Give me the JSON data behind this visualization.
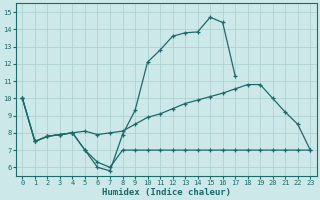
{
  "background_color": "#cce8e8",
  "grid_color": "#aacece",
  "line_color": "#1a6b6b",
  "xlabel": "Humidex (Indice chaleur)",
  "xlim": [
    -0.5,
    23.5
  ],
  "ylim": [
    5.5,
    15.5
  ],
  "yticks": [
    6,
    7,
    8,
    9,
    10,
    11,
    12,
    13,
    14,
    15
  ],
  "xticks": [
    0,
    1,
    2,
    3,
    4,
    5,
    6,
    7,
    8,
    9,
    10,
    11,
    12,
    13,
    14,
    15,
    16,
    17,
    18,
    19,
    20,
    21,
    22,
    23
  ],
  "line1_x": [
    0,
    1,
    2,
    3,
    4,
    5,
    6,
    7,
    8,
    9,
    10,
    11,
    12,
    13,
    14,
    15,
    16,
    17
  ],
  "line1_y": [
    10.0,
    7.5,
    7.8,
    7.9,
    8.0,
    7.0,
    6.0,
    5.8,
    7.9,
    9.3,
    12.1,
    12.8,
    13.6,
    13.8,
    13.85,
    14.7,
    14.4,
    11.3
  ],
  "line2_x": [
    0,
    1,
    2,
    3,
    4,
    5,
    6,
    7,
    8,
    9,
    10,
    11,
    12,
    13,
    14,
    15,
    16,
    17,
    18,
    19,
    20,
    21,
    22,
    23
  ],
  "line2_y": [
    10.0,
    7.5,
    7.8,
    7.9,
    8.0,
    8.1,
    7.9,
    8.0,
    8.1,
    8.5,
    8.9,
    9.1,
    9.4,
    9.7,
    9.9,
    10.1,
    10.3,
    10.55,
    10.8,
    10.8,
    10.0,
    9.2,
    8.5,
    7.0
  ],
  "line3_x": [
    0,
    1,
    2,
    3,
    4,
    5,
    6,
    7,
    8,
    9,
    10,
    11,
    12,
    13,
    14,
    15,
    16,
    17,
    18,
    19,
    20,
    21,
    22,
    23
  ],
  "line3_y": [
    10.0,
    7.5,
    7.8,
    7.9,
    8.0,
    7.0,
    6.3,
    6.0,
    7.0,
    7.0,
    7.0,
    7.0,
    7.0,
    7.0,
    7.0,
    7.0,
    7.0,
    7.0,
    7.0,
    7.0,
    7.0,
    7.0,
    7.0,
    7.0
  ]
}
